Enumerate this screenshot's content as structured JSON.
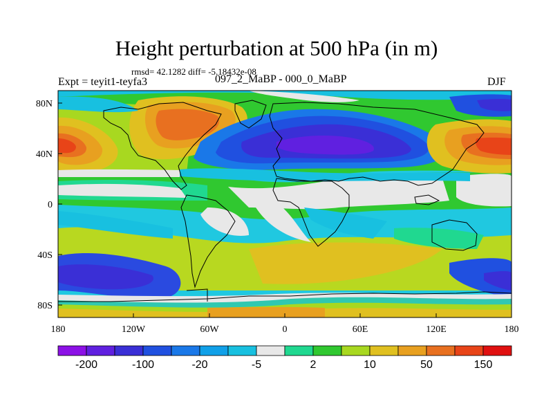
{
  "title": "Height perturbation at 500 hPa (in m)",
  "stats": "rmsd= 42.1282 diff= -5.18432e-08",
  "left_label": "Expt = teyit1-teyfa3",
  "center_label": "097_2_MaBP - 000_0_MaBP",
  "right_label": "DJF",
  "x_ticks": [
    "180",
    "120W",
    "60W",
    "0",
    "60E",
    "120E",
    "180"
  ],
  "y_ticks": [
    "80N",
    "40N",
    "0",
    "40S",
    "80S"
  ],
  "colorbar": {
    "colors": [
      "#8c11e6",
      "#6020e0",
      "#3a2fd6",
      "#2050e0",
      "#1a78e8",
      "#10a0e8",
      "#18c0e0",
      "#e8e8e8",
      "#20d890",
      "#30c830",
      "#a8d820",
      "#e0c020",
      "#e8a020",
      "#e87020",
      "#e84418",
      "#e01010"
    ],
    "labels": [
      "-200",
      "-100",
      "-20",
      "-5",
      "2",
      "10",
      "50",
      "150"
    ]
  }
}
